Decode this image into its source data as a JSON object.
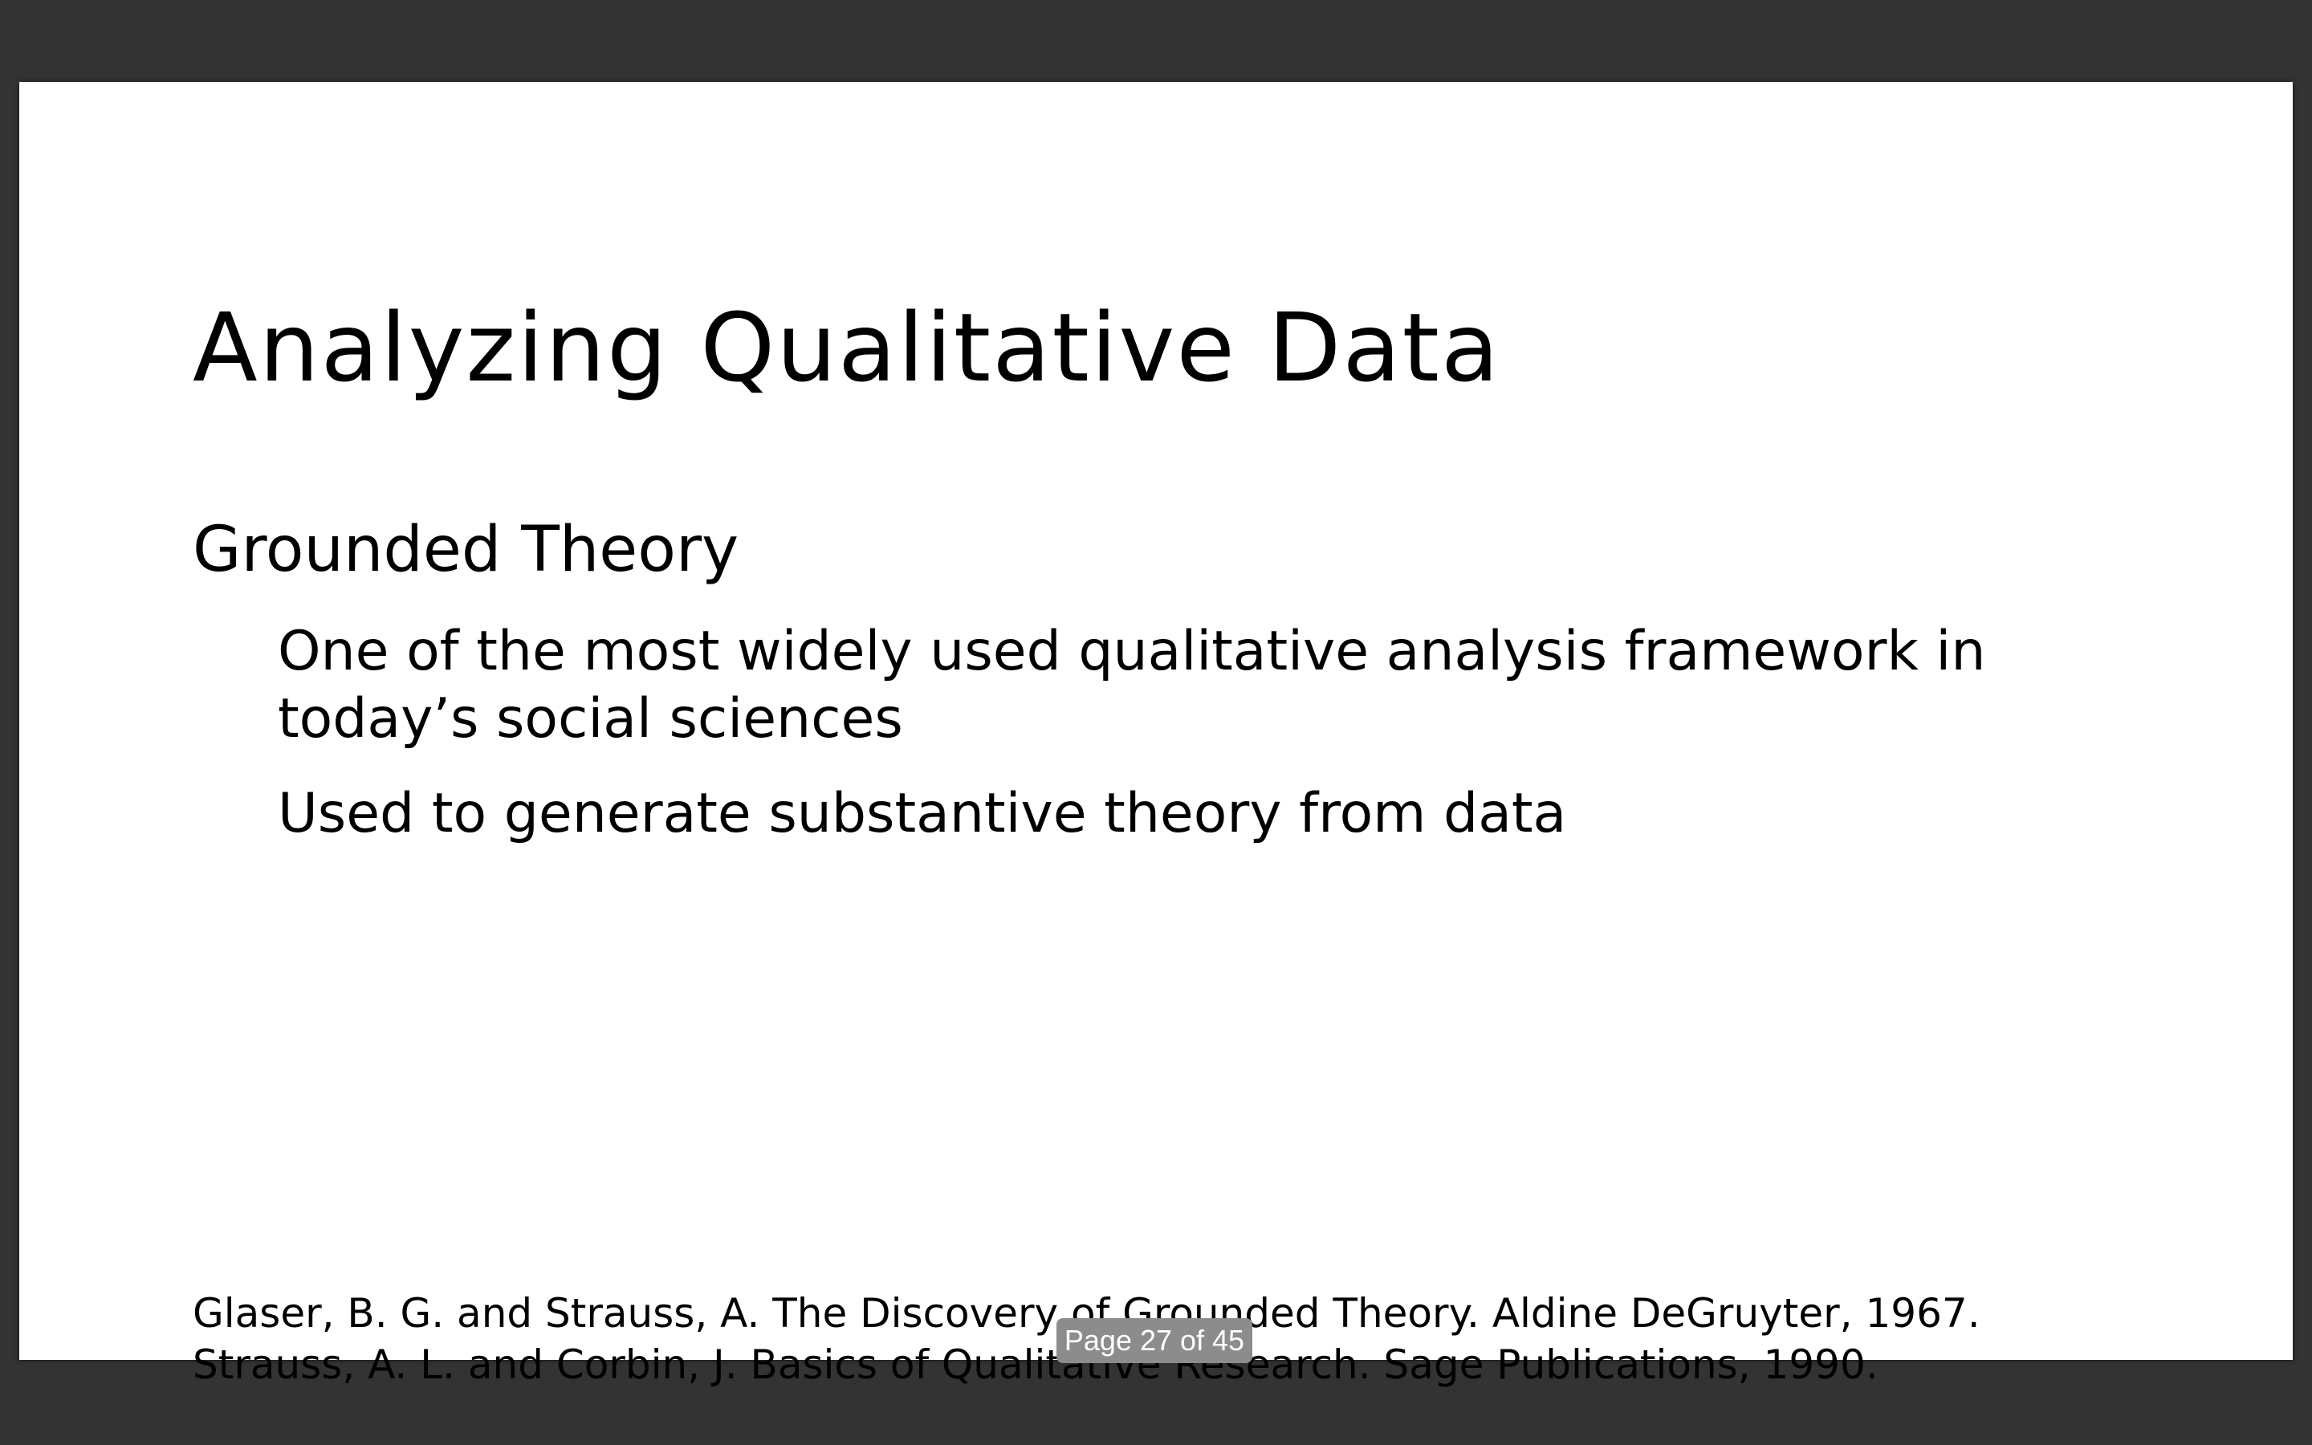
{
  "slide": {
    "title": "Analyzing Qualitative Data",
    "heading": "Grounded Theory",
    "bullets": [
      "One of the most widely used qualitative analysis framework in today’s social sciences",
      "Used to generate substantive theory from data"
    ],
    "references": [
      "Glaser, B. G. and Strauss, A. The Discovery of Grounded Theory. Aldine DeGruyter, 1967.",
      "Strauss, A. L. and Corbin, J. Basics of Qualitative Research. Sage Publications, 1990."
    ]
  },
  "viewer": {
    "page_indicator": "Page 27 of 45",
    "background_color": "#333333",
    "indicator_color": "#8c8c8c"
  }
}
